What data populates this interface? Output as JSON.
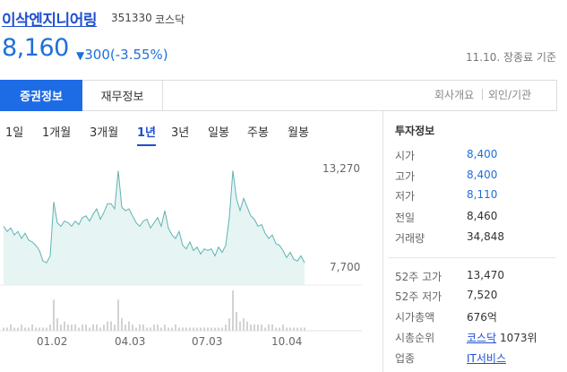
{
  "stock": {
    "name": "이삭엔지니어링",
    "code": "351330",
    "market": "코스닥",
    "price": "8,160",
    "change_arrow": "▼",
    "change": "300(-3.55%)",
    "date_status": "11.10. 장종료 기준"
  },
  "tabs": {
    "active": "증권정보",
    "second": "재무정보",
    "company": "회사개요",
    "foreign": "외인/기관"
  },
  "periods": [
    "1일",
    "1개월",
    "3개월",
    "1년",
    "3년",
    "일봉",
    "주봉",
    "월봉"
  ],
  "active_period": "1년",
  "chart": {
    "y_high": "13,270",
    "y_low": "7,700",
    "x_labels": [
      "01.02",
      "04.03",
      "07.03",
      "10.04"
    ]
  },
  "info": {
    "title": "투자정보",
    "rows1": [
      {
        "label": "시가",
        "value": "8,400",
        "color": "#1f6fd8"
      },
      {
        "label": "고가",
        "value": "8,400",
        "color": "#1f6fd8"
      },
      {
        "label": "저가",
        "value": "8,110",
        "color": "#1f6fd8"
      },
      {
        "label": "전일",
        "value": "8,460",
        "color": "#333333"
      },
      {
        "label": "거래량",
        "value": "34,848",
        "color": "#333333"
      }
    ],
    "rows2": [
      {
        "label": "52주 고가",
        "value": "13,470"
      },
      {
        "label": "52주 저가",
        "value": "7,520"
      },
      {
        "label": "시가총액",
        "value": "676억"
      },
      {
        "label": "시총순위",
        "link": "코스닥",
        "value": "1073위"
      },
      {
        "label": "업종",
        "link": "IT서비스",
        "value": ""
      }
    ]
  },
  "colors": {
    "accent": "#1e6be6",
    "line": "#5fb3b3",
    "area": "#e6f4f3",
    "volume": "#b3b3b3"
  },
  "chart_data": {
    "type": "line",
    "x_ticks": [
      "01.02",
      "04.03",
      "07.03",
      "10.04"
    ],
    "y_ticks": [
      "13,270",
      "7,700"
    ],
    "y_range": [
      7700,
      13270
    ],
    "y_values": [
      10000,
      9700,
      9900,
      9500,
      9700,
      9300,
      9600,
      9200,
      9100,
      8900,
      8600,
      8000,
      7900,
      8300,
      11400,
      10200,
      10000,
      10300,
      10200,
      10000,
      10300,
      10100,
      10500,
      10600,
      10300,
      10700,
      11000,
      10400,
      10800,
      11300,
      11300,
      11000,
      13200,
      11100,
      10900,
      11000,
      10600,
      10200,
      10000,
      10300,
      10400,
      9900,
      10200,
      10500,
      10000,
      10900,
      9900,
      9500,
      9300,
      9700,
      8900,
      8700,
      9100,
      8600,
      8800,
      8400,
      8700,
      8600,
      8700,
      8300,
      8800,
      8500,
      8900,
      10500,
      13200,
      11600,
      10900,
      11600,
      11100,
      10600,
      10400,
      10000,
      10100,
      9600,
      9300,
      9500,
      9000,
      8900,
      8600,
      8200,
      8500,
      8100,
      8000,
      8300,
      7900
    ],
    "volume": [
      1,
      1,
      2,
      1,
      1,
      2,
      1,
      1,
      2,
      1,
      1,
      1,
      1,
      2,
      10,
      4,
      2,
      3,
      2,
      2,
      2,
      1,
      2,
      2,
      1,
      2,
      2,
      1,
      2,
      3,
      3,
      2,
      10,
      4,
      2,
      3,
      2,
      1,
      2,
      2,
      1,
      1,
      2,
      2,
      1,
      2,
      1,
      1,
      2,
      1,
      1,
      1,
      1,
      1,
      1,
      1,
      1,
      1,
      1,
      1,
      1,
      1,
      2,
      4,
      13,
      6,
      3,
      4,
      3,
      2,
      2,
      2,
      2,
      1,
      2,
      2,
      1,
      1,
      2,
      1,
      1,
      1,
      1,
      1,
      1
    ],
    "grid": false
  }
}
